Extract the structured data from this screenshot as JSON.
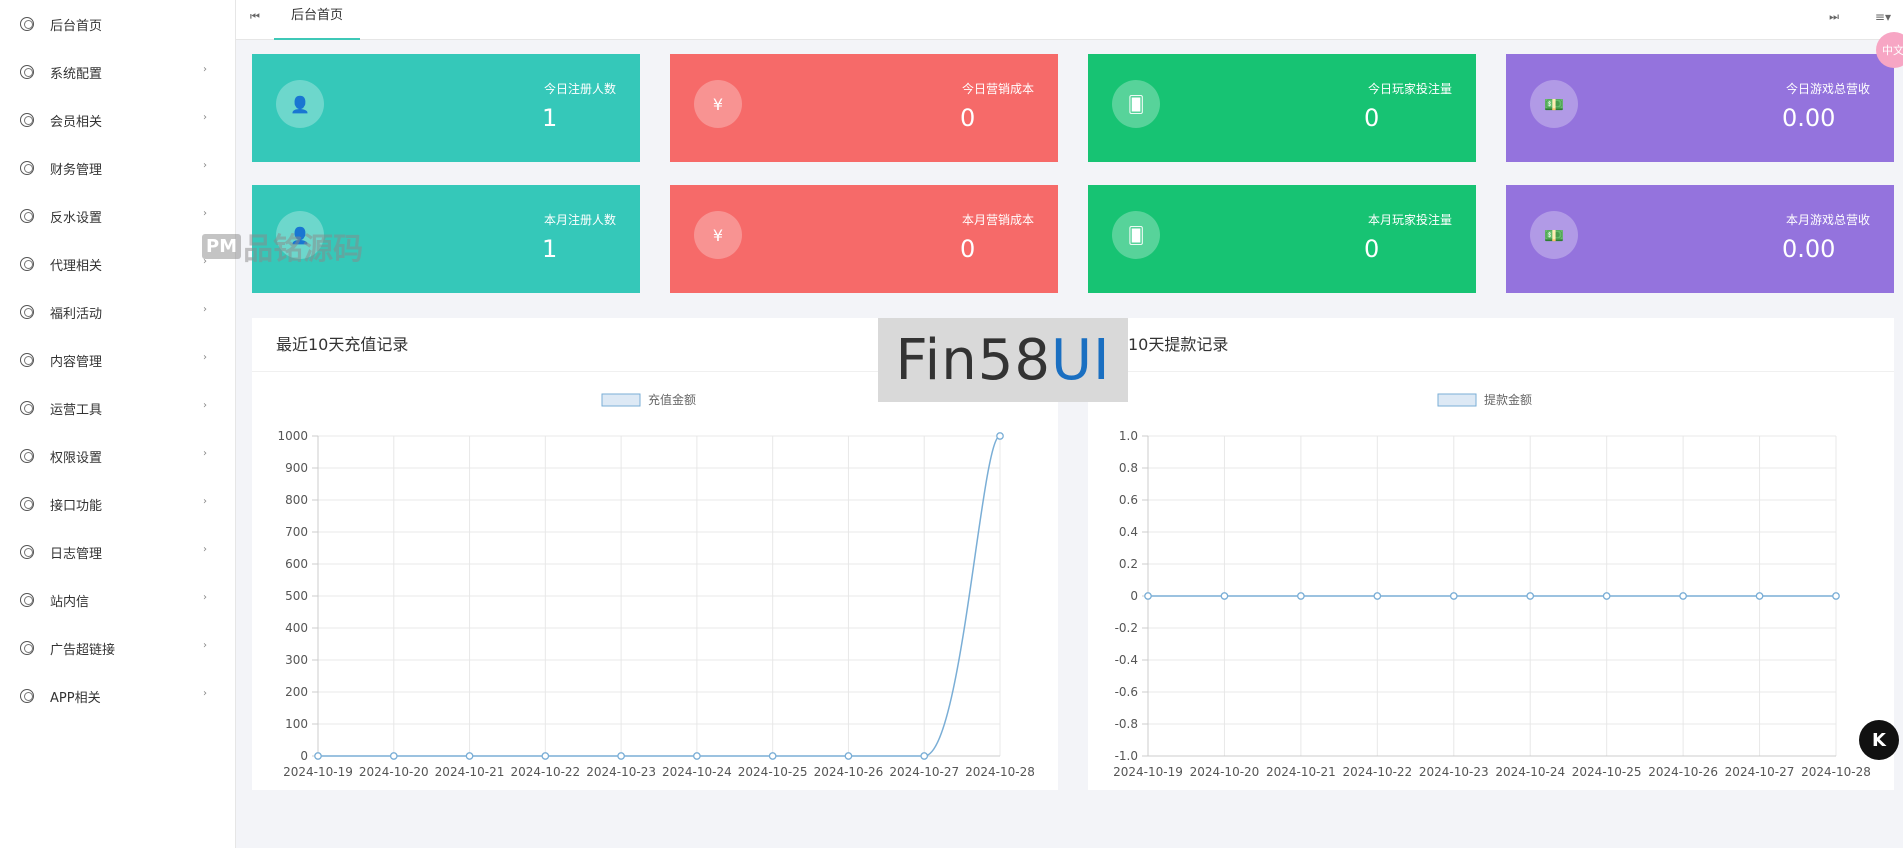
{
  "sidebar": {
    "items": [
      {
        "label": "后台首页",
        "arrow": false
      },
      {
        "label": "系统配置",
        "arrow": true
      },
      {
        "label": "会员相关",
        "arrow": true
      },
      {
        "label": "财务管理",
        "arrow": true
      },
      {
        "label": "反水设置",
        "arrow": true
      },
      {
        "label": "代理相关",
        "arrow": true
      },
      {
        "label": "福利活动",
        "arrow": true
      },
      {
        "label": "内容管理",
        "arrow": true
      },
      {
        "label": "运营工具",
        "arrow": true
      },
      {
        "label": "权限设置",
        "arrow": true
      },
      {
        "label": "接口功能",
        "arrow": true
      },
      {
        "label": "日志管理",
        "arrow": true
      },
      {
        "label": "站内信",
        "arrow": true
      },
      {
        "label": "广告超链接",
        "arrow": true
      },
      {
        "label": "APP相关",
        "arrow": true
      }
    ]
  },
  "topbar": {
    "rewind_icon": "⏮",
    "tab_home": "后台首页",
    "fastfwd_icon": "⏭",
    "menu_icon": "≡▾"
  },
  "stats": {
    "today_reg": {
      "title": "今日注册人数",
      "value": "1",
      "icon": "user-icon",
      "glyph": "👤"
    },
    "today_cost": {
      "title": "今日营销成本",
      "value": "0",
      "icon": "yen-icon",
      "glyph": "¥"
    },
    "today_bet": {
      "title": "今日玩家投注量",
      "value": "0",
      "icon": "cards-icon",
      "glyph": "🂠"
    },
    "today_rev": {
      "title": "今日游戏总营收",
      "value": "0.00",
      "icon": "money-icon",
      "glyph": "💵"
    },
    "month_reg": {
      "title": "本月注册人数",
      "value": "1",
      "icon": "user-icon",
      "glyph": "👤"
    },
    "month_cost": {
      "title": "本月营销成本",
      "value": "0",
      "icon": "yen-icon",
      "glyph": "¥"
    },
    "month_bet": {
      "title": "本月玩家投注量",
      "value": "0",
      "icon": "cards-icon",
      "glyph": "🂠"
    },
    "month_rev": {
      "title": "本月游戏总营收",
      "value": "0.00",
      "icon": "money-icon",
      "glyph": "💵"
    }
  },
  "colors": {
    "teal": "#35c8b9",
    "red": "#f66a69",
    "green": "#17c373",
    "purple": "#9473dd",
    "line": "#7aaed6"
  },
  "panels": {
    "recharge_title": "最近10天充值记录",
    "withdraw_title": "近10天提款记录"
  },
  "watermarks": {
    "fin_a": "Fin58",
    "fin_b": "UI",
    "pm_box": "PM",
    "pm_text": "品铭源码"
  },
  "floating": {
    "k_label": "K",
    "pink_label": "中文"
  },
  "chart_data": [
    {
      "type": "line",
      "legend": "充值金额",
      "x": [
        "2024-10-19",
        "2024-10-20",
        "2024-10-21",
        "2024-10-22",
        "2024-10-23",
        "2024-10-24",
        "2024-10-25",
        "2024-10-26",
        "2024-10-27",
        "2024-10-28"
      ],
      "series": [
        {
          "name": "充值金额",
          "values": [
            0,
            0,
            0,
            0,
            0,
            0,
            0,
            0,
            0,
            1000
          ]
        }
      ],
      "ylim": [
        0,
        1000
      ],
      "yticks": [
        0,
        100,
        200,
        300,
        400,
        500,
        600,
        700,
        800,
        900,
        1000
      ],
      "ytick_labels": [
        "0",
        "100",
        "200",
        "300",
        "400",
        "500",
        "600",
        "700",
        "800",
        "900",
        "1000"
      ],
      "grid": true,
      "legend_position": "top"
    },
    {
      "type": "line",
      "legend": "提款金额",
      "x": [
        "2024-10-19",
        "2024-10-20",
        "2024-10-21",
        "2024-10-22",
        "2024-10-23",
        "2024-10-24",
        "2024-10-25",
        "2024-10-26",
        "2024-10-27",
        "2024-10-28"
      ],
      "series": [
        {
          "name": "提款金额",
          "values": [
            0,
            0,
            0,
            0,
            0,
            0,
            0,
            0,
            0,
            0
          ]
        }
      ],
      "ylim": [
        -1.0,
        1.0
      ],
      "yticks": [
        -1.0,
        -0.8,
        -0.6,
        -0.4,
        -0.2,
        0,
        0.2,
        0.4,
        0.6,
        0.8,
        1.0
      ],
      "ytick_labels": [
        "-1.0",
        "-0.8",
        "-0.6",
        "-0.4",
        "-0.2",
        "0",
        "0.2",
        "0.4",
        "0.6",
        "0.8",
        "1.0"
      ],
      "grid": true,
      "legend_position": "top"
    }
  ]
}
